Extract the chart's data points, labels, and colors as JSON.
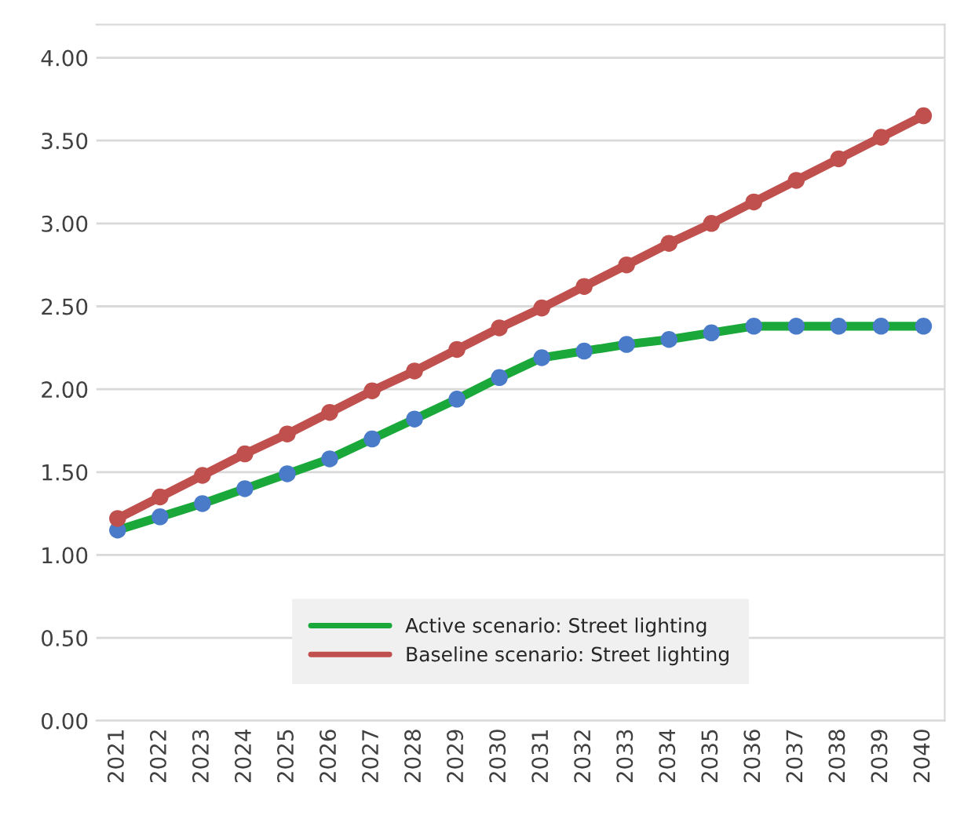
{
  "chart_data": {
    "type": "line",
    "categories": [
      "2021",
      "2022",
      "2023",
      "2024",
      "2025",
      "2026",
      "2027",
      "2028",
      "2029",
      "2030",
      "2031",
      "2032",
      "2033",
      "2034",
      "2035",
      "2036",
      "2037",
      "2038",
      "2039",
      "2040"
    ],
    "series": [
      {
        "name": "Active scenario: Street lighting",
        "color": "#1aa83a",
        "colors": [
          "#4a7bc8",
          "#4a7bc8",
          "#4a7bc8",
          "#4a7bc8",
          "#4a7bc8",
          "#4a7bc8",
          "#4a7bc8",
          "#4a7bc8",
          "#4a7bc8",
          "#4a7bc8",
          "#4a7bc8",
          "#4a7bc8",
          "#4a7bc8",
          "#4a7bc8",
          "#4a7bc8",
          "#4a7bc8",
          "#4a7bc8",
          "#4a7bc8",
          "#4a7bc8",
          "#4a7bc8"
        ],
        "values": [
          1.15,
          1.23,
          1.31,
          1.4,
          1.49,
          1.58,
          1.7,
          1.82,
          1.94,
          2.07,
          2.19,
          2.23,
          2.27,
          2.3,
          2.34,
          2.38,
          2.38,
          2.38,
          2.38,
          2.38
        ]
      },
      {
        "name": "Baseline scenario: Street lighting",
        "color": "#c0504d",
        "colors": [
          "#c0504d",
          "#c0504d",
          "#c0504d",
          "#c0504d",
          "#c0504d",
          "#c0504d",
          "#c0504d",
          "#c0504d",
          "#c0504d",
          "#c0504d",
          "#c0504d",
          "#c0504d",
          "#c0504d",
          "#c0504d",
          "#c0504d",
          "#c0504d",
          "#c0504d",
          "#c0504d",
          "#c0504d",
          "#c0504d"
        ],
        "values": [
          1.22,
          1.35,
          1.48,
          1.61,
          1.73,
          1.86,
          1.99,
          2.11,
          2.24,
          2.37,
          2.49,
          2.62,
          2.75,
          2.88,
          3.0,
          3.13,
          3.26,
          3.39,
          3.52,
          3.65
        ]
      }
    ],
    "ylim": [
      0,
      4.2
    ],
    "yticks": [
      {
        "value": 0,
        "label": "0.00"
      },
      {
        "value": 0.5,
        "label": "0.50"
      },
      {
        "value": 1,
        "label": "1.00"
      },
      {
        "value": 1.5,
        "label": "1.50"
      },
      {
        "value": 2,
        "label": "2.00"
      },
      {
        "value": 2.5,
        "label": "2.50"
      },
      {
        "value": 3,
        "label": "3.00"
      },
      {
        "value": 3.5,
        "label": "3.50"
      },
      {
        "value": 4,
        "label": "4.00"
      }
    ],
    "grid": "y",
    "legend": "bottom",
    "marker": "circle",
    "line_style": "solid"
  }
}
